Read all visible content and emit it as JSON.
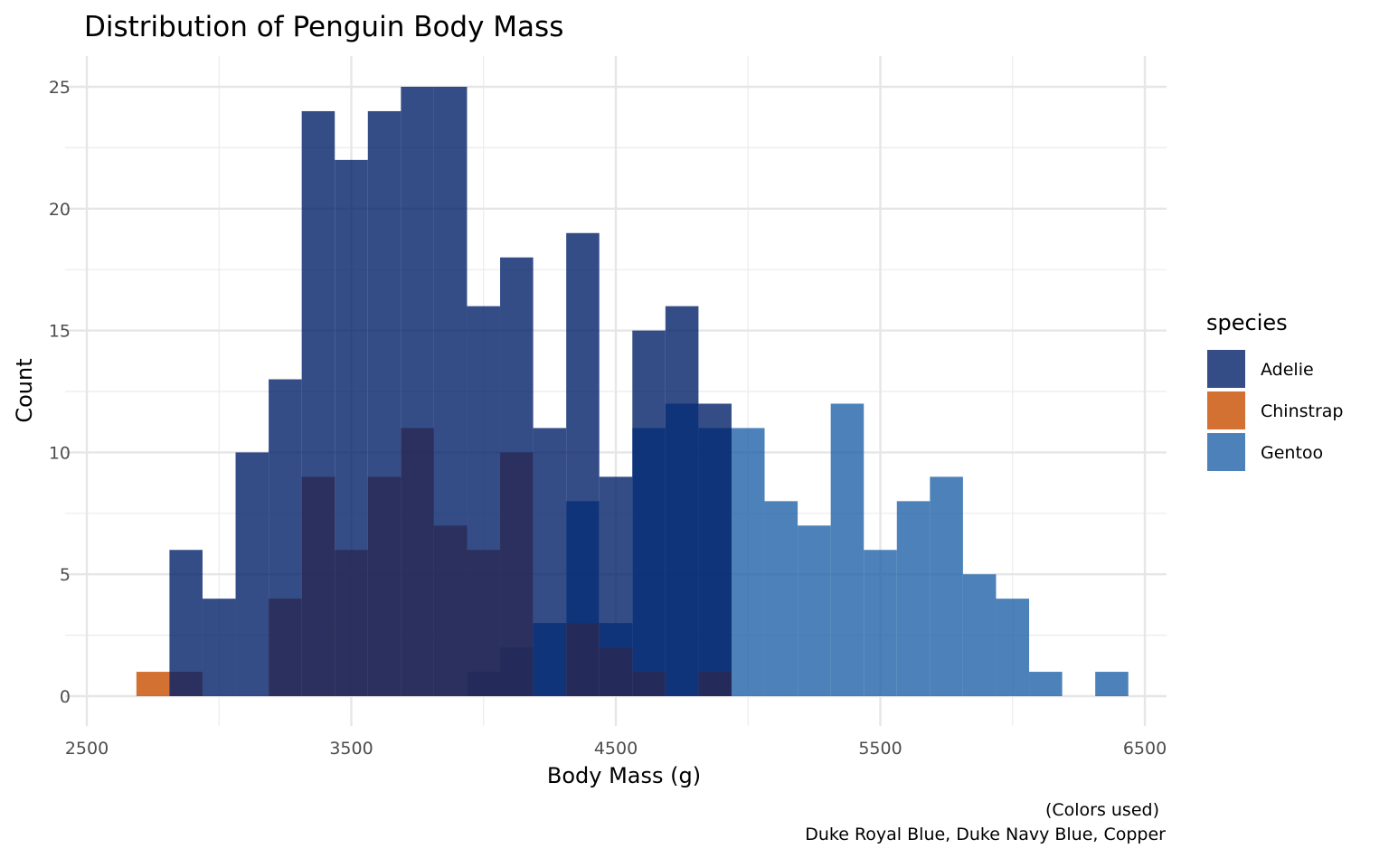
{
  "chart_data": {
    "type": "histogram",
    "title": "Distribution of Penguin Body Mass",
    "xlabel": "Body Mass (g)",
    "ylabel": "Count",
    "xlim": [
      2500,
      6500
    ],
    "ylim": [
      0,
      25
    ],
    "x_ticks": [
      2500,
      3500,
      4500,
      5500,
      6500
    ],
    "x_tick_labels": [
      "2500",
      "3500",
      "4500",
      "5500",
      "6500"
    ],
    "y_ticks": [
      0,
      5,
      10,
      15,
      20,
      25
    ],
    "y_tick_labels": [
      "0",
      "5",
      "10",
      "15",
      "20",
      "25"
    ],
    "bin_edges": [
      2687.5,
      2812.5,
      2937.5,
      3062.5,
      3187.5,
      3312.5,
      3437.5,
      3562.5,
      3687.5,
      3812.5,
      3937.5,
      4062.5,
      4187.5,
      4312.5,
      4437.5,
      4562.5,
      4687.5,
      4812.5,
      4937.5,
      5062.5,
      5187.5,
      5312.5,
      5437.5,
      5562.5,
      5687.5,
      5812.5,
      5937.5,
      6062.5,
      6187.5,
      6312.5,
      6437.5
    ],
    "series": [
      {
        "name": "Gentoo",
        "color": "#1F63A8",
        "values": [
          0,
          0,
          0,
          0,
          0,
          0,
          0,
          0,
          0,
          0,
          1,
          2,
          3,
          8,
          3,
          11,
          12,
          11,
          11,
          8,
          7,
          12,
          6,
          8,
          9,
          5,
          4,
          1,
          0,
          1
        ]
      },
      {
        "name": "Chinstrap",
        "color": "#C84E00",
        "values": [
          1,
          1,
          0,
          0,
          4,
          9,
          6,
          9,
          11,
          7,
          6,
          10,
          0,
          3,
          2,
          1,
          0,
          1,
          0,
          0,
          0,
          0,
          0,
          0,
          0,
          0,
          0,
          0,
          0,
          0
        ]
      },
      {
        "name": "Adelie",
        "color": "#012169",
        "values": [
          0,
          6,
          4,
          10,
          13,
          24,
          22,
          24,
          25,
          25,
          16,
          18,
          11,
          19,
          9,
          15,
          16,
          12,
          0,
          0,
          0,
          0,
          0,
          0,
          0,
          0,
          0,
          0,
          0,
          0
        ]
      }
    ],
    "legend": {
      "title": "species",
      "position": "right",
      "items": [
        {
          "label": "Adelie",
          "color": "#012169"
        },
        {
          "label": "Chinstrap",
          "color": "#C84E00"
        },
        {
          "label": "Gentoo",
          "color": "#1F63A8"
        }
      ]
    },
    "caption": [
      "(Colors used)",
      "Duke Royal Blue, Duke Navy Blue, Copper"
    ],
    "grid": true,
    "bar_opacity": 0.8
  }
}
